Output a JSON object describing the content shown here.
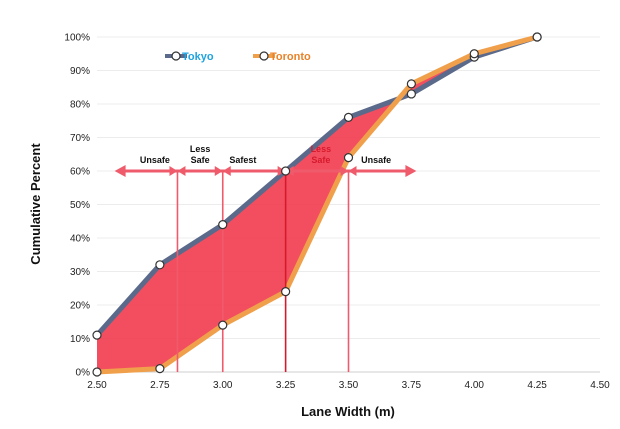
{
  "chart_data": {
    "type": "line",
    "xlabel": "Lane Width (m)",
    "ylabel": "Cumulative Percent",
    "xlim": [
      2.5,
      4.5
    ],
    "ylim": [
      0,
      100
    ],
    "x_ticks": [
      "2.50",
      "2.75",
      "3.00",
      "3.25",
      "3.50",
      "3.75",
      "4.00",
      "4.25",
      "4.50"
    ],
    "y_ticks": [
      "0%",
      "10%",
      "20%",
      "30%",
      "40%",
      "50%",
      "60%",
      "70%",
      "80%",
      "90%",
      "100%"
    ],
    "grid": true,
    "legend_position": "top-left",
    "series": [
      {
        "name": "Tokyo",
        "color": "#5b6a8a",
        "label_color": "#1fa3e0",
        "x": [
          2.5,
          2.75,
          3.0,
          3.25,
          3.5,
          3.75,
          4.0,
          4.25
        ],
        "y": [
          11,
          32,
          44,
          60,
          76,
          83,
          94,
          100
        ]
      },
      {
        "name": "Toronto",
        "color": "#f0a04b",
        "label_color": "#e8822a",
        "x": [
          2.5,
          2.75,
          3.0,
          3.25,
          3.5,
          3.75,
          4.0,
          4.25
        ],
        "y": [
          0,
          1,
          14,
          24,
          64,
          86,
          95,
          100
        ]
      }
    ],
    "shaded_region": {
      "between": [
        "Tokyo",
        "Toronto"
      ],
      "color": "#f23b4f"
    },
    "reference_line": {
      "y": 60,
      "x_from": 2.57,
      "x_to": 3.77,
      "color": "#ef5b6b"
    },
    "zone_boundaries": [
      {
        "x": 2.82,
        "color": "#ef5b6b"
      },
      {
        "x": 3.0,
        "color": "#ef5b6b"
      },
      {
        "x": 3.25,
        "color": "#d61a2c"
      },
      {
        "x": 3.5,
        "color": "#ef5b6b"
      }
    ],
    "zones": [
      {
        "lines": [
          "Unsafe"
        ],
        "x": 2.73,
        "color": "#111111"
      },
      {
        "lines": [
          "Less",
          "Safe"
        ],
        "x": 2.91,
        "color": "#111111"
      },
      {
        "lines": [
          "Safest"
        ],
        "x": 3.08,
        "color": "#111111"
      },
      {
        "lines": [
          "Less",
          "Safe"
        ],
        "x": 3.39,
        "color": "#d61a2c"
      },
      {
        "lines": [
          "Unsafe"
        ],
        "x": 3.61,
        "color": "#111111"
      }
    ]
  }
}
